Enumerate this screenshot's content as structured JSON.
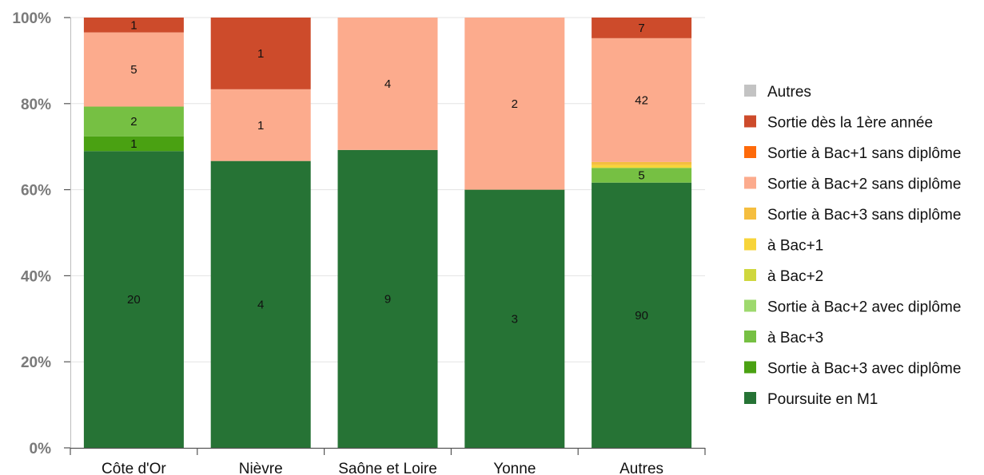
{
  "chart_data": {
    "type": "bar",
    "stacked": true,
    "normalized": true,
    "categories": [
      "Côte d'Or",
      "Nièvre",
      "Saône et Loire",
      "Yonne",
      "Autres"
    ],
    "yticks": [
      "0%",
      "20%",
      "40%",
      "60%",
      "80%",
      "100%"
    ],
    "ylim": [
      0,
      100
    ],
    "grid": true,
    "legend_position": "right",
    "series": [
      {
        "name": "Poursuite en M1",
        "color": "#267335",
        "values": [
          20,
          4,
          9,
          3,
          90
        ]
      },
      {
        "name": "Sortie à Bac+3 avec diplôme",
        "color": "#4aa112",
        "values": [
          1,
          0,
          0,
          0,
          0
        ]
      },
      {
        "name": "à Bac+3",
        "color": "#76c043",
        "values": [
          2,
          0,
          0,
          0,
          5
        ]
      },
      {
        "name": "Sortie à Bac+2 avec diplôme",
        "color": "#9ed96e",
        "values": [
          0,
          0,
          0,
          0,
          0
        ]
      },
      {
        "name": "à Bac+2",
        "color": "#cfd73e",
        "values": [
          0,
          0,
          0,
          0,
          0
        ]
      },
      {
        "name": "à Bac+1",
        "color": "#f7d43a",
        "values": [
          0,
          0,
          0,
          0,
          1
        ]
      },
      {
        "name": "Sortie à Bac+3 sans diplôme",
        "color": "#f5be3f",
        "values": [
          0,
          0,
          0,
          0,
          1
        ]
      },
      {
        "name": "Sortie à Bac+2 sans diplôme",
        "color": "#fcab8d",
        "values": [
          5,
          1,
          4,
          2,
          42
        ]
      },
      {
        "name": "Sortie à Bac+1 sans diplôme",
        "color": "#fe6a0a",
        "values": [
          0,
          0,
          0,
          0,
          0
        ]
      },
      {
        "name": "Sortie dès la 1ère année",
        "color": "#cd4b2b",
        "values": [
          1,
          1,
          0,
          0,
          7
        ]
      },
      {
        "name": "Autres",
        "color": "#c3c3c3",
        "values": [
          0,
          0,
          0,
          0,
          0
        ]
      }
    ],
    "hidden_labels": [
      [
        false,
        false,
        false,
        false,
        false
      ],
      [
        false,
        false,
        false,
        false,
        false
      ],
      [
        false,
        false,
        false,
        false,
        false
      ],
      [
        false,
        false,
        false,
        false,
        false
      ],
      [
        false,
        false,
        false,
        false,
        false
      ],
      [
        false,
        false,
        false,
        false,
        true
      ],
      [
        false,
        false,
        false,
        false,
        true
      ],
      [
        false,
        false,
        false,
        false,
        false
      ],
      [
        false,
        false,
        false,
        false,
        false
      ],
      [
        false,
        false,
        false,
        false,
        false
      ],
      [
        false,
        false,
        false,
        false,
        false
      ]
    ]
  }
}
